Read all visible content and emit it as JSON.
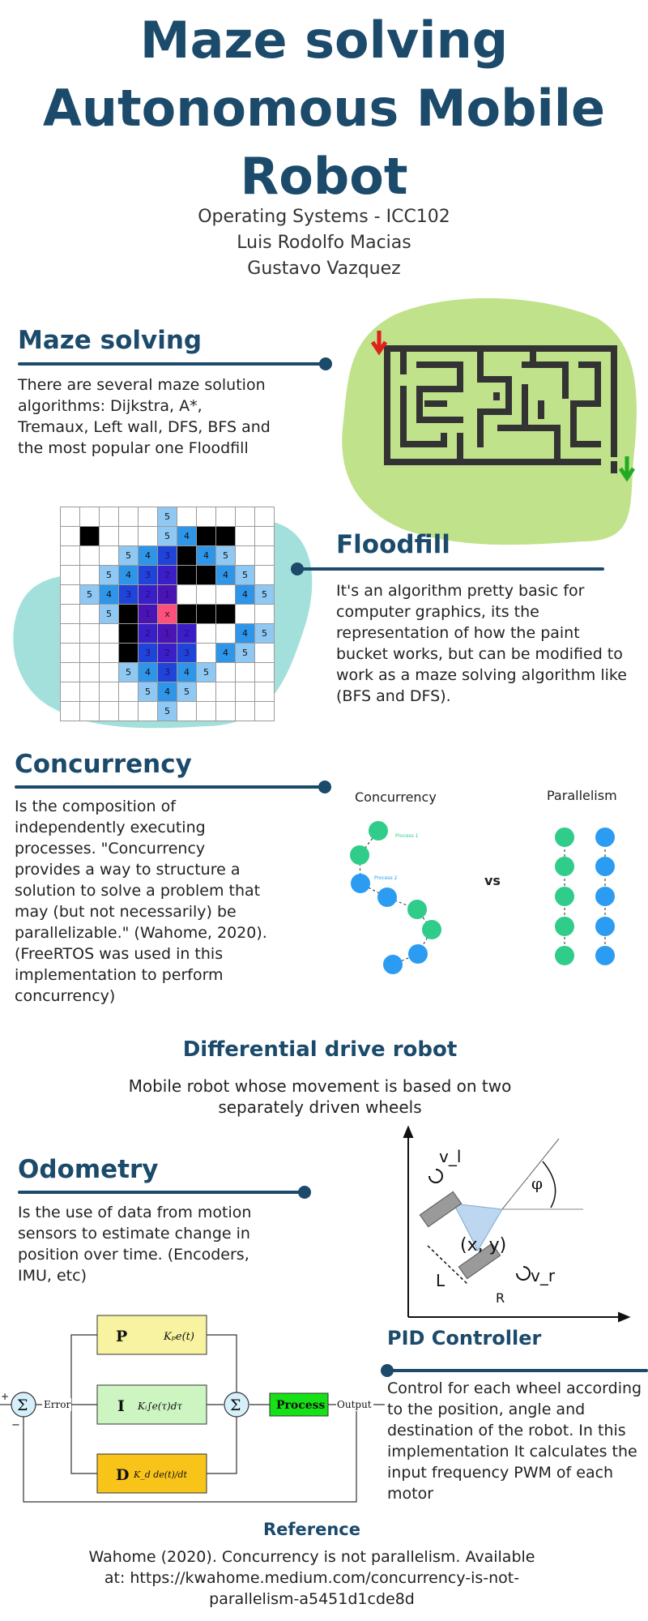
{
  "header": {
    "title_line1": "Maze solving",
    "title_line2": "Autonomous Mobile",
    "title_line3": "Robot",
    "course": "Operating Systems - ICC102",
    "author1": "Luis Rodolfo Macias",
    "author2": "Gustavo Vazquez"
  },
  "maze_section": {
    "heading": "Maze solving",
    "text": "There are several maze solution algorithms: Dijkstra, A*, Tremaux,  Left wall, DFS, BFS and the most popular one Floodfill"
  },
  "floodfill_section": {
    "heading": "Floodfill",
    "text": "It's an algorithm pretty basic for computer graphics, its the representation of how the paint bucket works, but can be modified to work as a maze solving algorithm like (BFS and DFS).",
    "grid": [
      [
        "",
        "",
        "",
        "",
        "",
        "5",
        "",
        "",
        "",
        "",
        ""
      ],
      [
        "",
        "",
        "",
        "",
        "",
        "5",
        "4",
        "",
        "",
        "",
        ""
      ],
      [
        "",
        "",
        "",
        "5",
        "4",
        "3",
        "",
        "4",
        "5",
        "",
        ""
      ],
      [
        "",
        "",
        "5",
        "4",
        "3",
        "2",
        "",
        "",
        "4",
        "5",
        ""
      ],
      [
        "",
        "5",
        "4",
        "3",
        "2",
        "1",
        "",
        "",
        "",
        "4",
        "5"
      ],
      [
        "",
        "",
        "5",
        "",
        "1",
        "x",
        "",
        "",
        "",
        "",
        ""
      ],
      [
        "",
        "",
        "",
        "",
        "2",
        "1",
        "2",
        "",
        "",
        "4",
        "5"
      ],
      [
        "",
        "",
        "",
        "",
        "3",
        "2",
        "3",
        "",
        "4",
        "5",
        ""
      ],
      [
        "",
        "",
        "",
        "5",
        "4",
        "3",
        "4",
        "5",
        "",
        "",
        ""
      ],
      [
        "",
        "",
        "",
        "",
        "5",
        "4",
        "5",
        "",
        "",
        "",
        ""
      ],
      [
        "",
        "",
        "",
        "",
        "",
        "5",
        "",
        "",
        "",
        "",
        ""
      ]
    ],
    "colors": {
      "wall": "#000000",
      "d5": "#8fc8f2",
      "d4": "#2f95e8",
      "d3": "#1f44d8",
      "d2": "#3a1fc8",
      "d1": "#4a14b4",
      "goal": "#ff4f7a",
      "empty": "#ffffff"
    }
  },
  "concurrency_section": {
    "heading": "Concurrency",
    "text": " Is the composition of independently executing processes. \"Concurrency provides a way to structure a solution to solve a problem that may (but not necessarily) be parallelizable.\" (Wahome, 2020). (FreeRTOS was used in this implementation to perform concurrency)",
    "diagram": {
      "left_label": "Concurrency",
      "right_label": "Parallelism",
      "vs": "vs",
      "process1": "Process 1",
      "process2": "Process 2",
      "green": "#2fcc8a",
      "blue": "#2b9cf2"
    }
  },
  "diff_drive": {
    "heading": "Differential drive robot",
    "text_line1": "Mobile robot whose movement is based on two",
    "text_line2": "separately driven wheels",
    "diagram": {
      "v_l": "v_l",
      "v_r": "v_r",
      "phi": "φ",
      "xy": "(x, y)",
      "L": "L",
      "R": "R"
    }
  },
  "odometry_section": {
    "heading": "Odometry",
    "text": "Is the use of data from motion sensors to estimate change in position over time. (Encoders, IMU, etc)"
  },
  "pid_section": {
    "heading": "PID Controller",
    "text": "Control for each wheel according to the position,  angle and destination  of the robot. In this implementation It calculates  the input frequency PWM of each motor",
    "diagram": {
      "p": "P",
      "i": "I",
      "d": "D",
      "p_formula": "Kₚe(t)",
      "i_formula": "Kᵢ∫e(τ)dτ",
      "d_formula": "K_d de(t)/dt",
      "sigma": "Σ",
      "error": "Error",
      "process": "Process",
      "output": "Output",
      "plus": "+",
      "minus": "−",
      "p_color": "#f7f3a0",
      "i_color": "#cdf5c2",
      "d_color": "#f9c41a",
      "process_color": "#16e016"
    }
  },
  "reference": {
    "heading": "Reference",
    "line1": "Wahome (2020). Concurrency is not parallelism. Available",
    "line2": "at: https://kwahome.medium.com/concurrency-is-not-",
    "line3": "parallelism-a5451d1cde8d"
  },
  "palette": {
    "navy": "#1b4a6b",
    "green_blob": "#bfe28a",
    "teal_blob": "#a3e0dc",
    "maze_wall": "#333333"
  }
}
